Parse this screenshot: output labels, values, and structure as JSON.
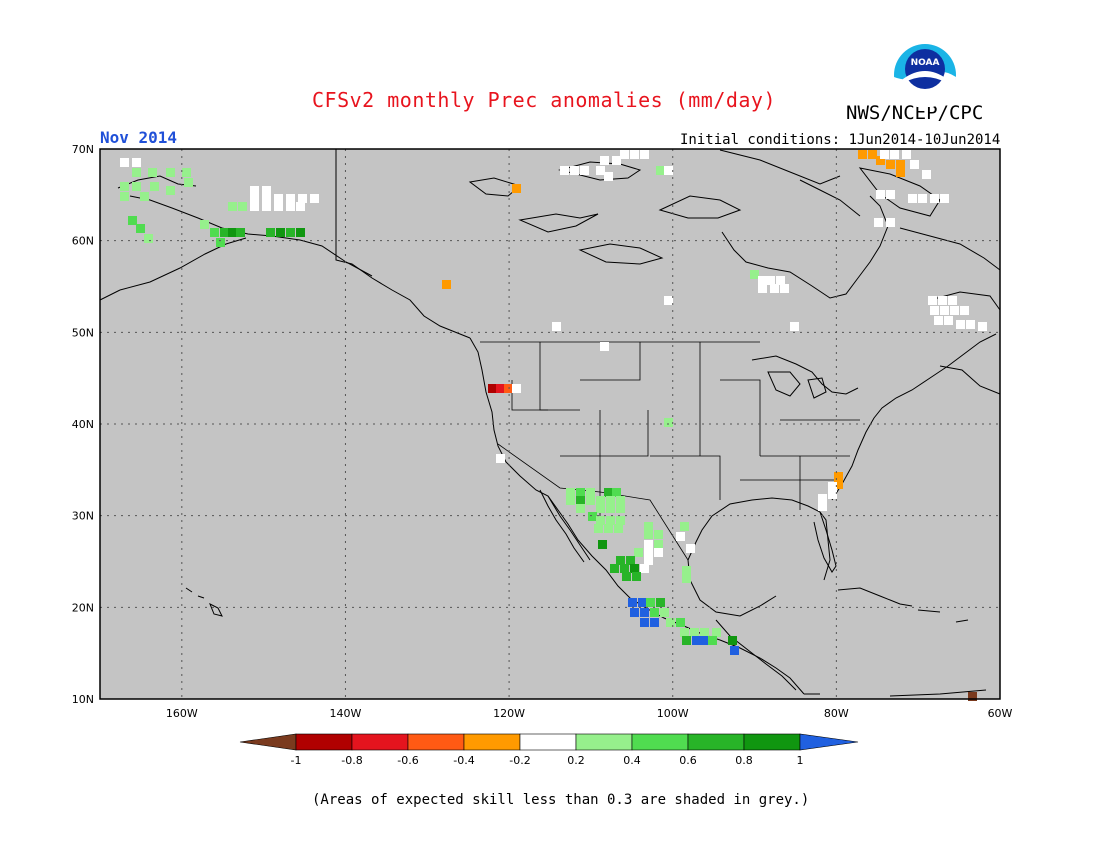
{
  "header": {
    "title": "CFSv2 monthly Prec anomalies (mm/day)",
    "agency": "NWS/NCEP/CPC",
    "valid_month": "Nov 2014",
    "initial_conditions": "Initial conditions: 1Jun2014-10Jun2014"
  },
  "logo": {
    "text": "NOAA"
  },
  "map": {
    "lat_range": [
      10,
      70
    ],
    "lon_range": [
      -170,
      -60
    ],
    "land_color": "#c4c4c4",
    "grid": "dotted",
    "lat_labels": [
      "70N",
      "60N",
      "50N",
      "40N",
      "30N",
      "20N",
      "10N"
    ],
    "lon_labels": [
      "160W",
      "140W",
      "120W",
      "100W",
      "80W",
      "60W"
    ]
  },
  "colorbar": {
    "tick_labels": [
      "-1",
      "-0.8",
      "-0.6",
      "-0.4",
      "-0.2",
      "0.2",
      "0.4",
      "0.6",
      "0.8",
      "1"
    ],
    "colors": [
      "#7a3a1e",
      "#b00000",
      "#e4141e",
      "#ff5a14",
      "#ff9a00",
      "#ffffff",
      "#96f08c",
      "#50dc50",
      "#28b428",
      "#109610",
      "#2060e0"
    ]
  },
  "footnote": "(Areas of expected skill less than 0.3 are shaded in grey.)"
}
